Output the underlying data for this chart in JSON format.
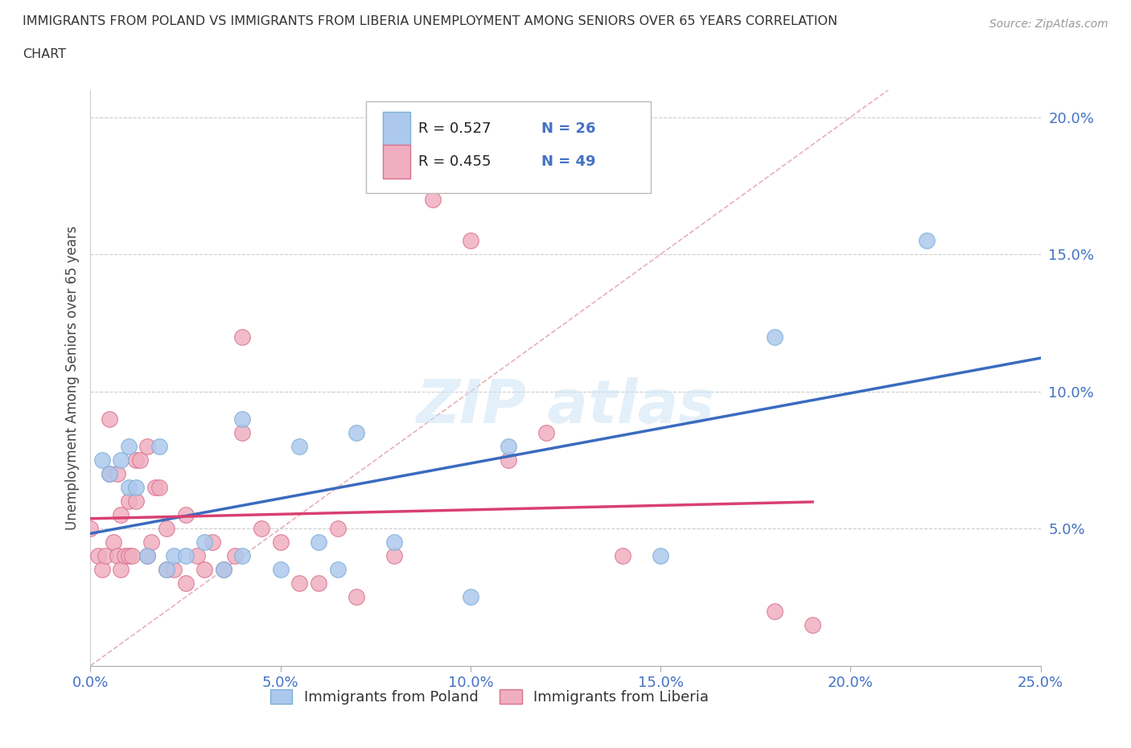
{
  "title_line1": "IMMIGRANTS FROM POLAND VS IMMIGRANTS FROM LIBERIA UNEMPLOYMENT AMONG SENIORS OVER 65 YEARS CORRELATION",
  "title_line2": "CHART",
  "source": "Source: ZipAtlas.com",
  "ylabel_label": "Unemployment Among Seniors over 65 years",
  "xlim": [
    0.0,
    0.25
  ],
  "ylim": [
    0.0,
    0.21
  ],
  "xticks": [
    0.0,
    0.05,
    0.1,
    0.15,
    0.2,
    0.25
  ],
  "yticks": [
    0.05,
    0.1,
    0.15,
    0.2
  ],
  "poland_color": "#adc8ed",
  "poland_edge_color": "#7aafd6",
  "liberia_color": "#f0afc0",
  "liberia_edge_color": "#d97090",
  "trend_poland_color": "#3a6bbf",
  "trend_liberia_color": "#d94070",
  "diagonal_color": "#e8b0b8",
  "R_poland": 0.527,
  "N_poland": 26,
  "R_liberia": 0.455,
  "N_liberia": 49,
  "poland_x": [
    0.003,
    0.005,
    0.008,
    0.01,
    0.01,
    0.012,
    0.015,
    0.018,
    0.02,
    0.022,
    0.025,
    0.03,
    0.035,
    0.04,
    0.04,
    0.05,
    0.055,
    0.06,
    0.065,
    0.07,
    0.08,
    0.1,
    0.11,
    0.15,
    0.18,
    0.22
  ],
  "poland_y": [
    0.075,
    0.07,
    0.075,
    0.065,
    0.08,
    0.065,
    0.04,
    0.08,
    0.035,
    0.04,
    0.04,
    0.045,
    0.035,
    0.04,
    0.09,
    0.035,
    0.08,
    0.045,
    0.035,
    0.085,
    0.045,
    0.025,
    0.08,
    0.04,
    0.12,
    0.155
  ],
  "liberia_x": [
    0.0,
    0.002,
    0.003,
    0.004,
    0.005,
    0.005,
    0.006,
    0.007,
    0.007,
    0.008,
    0.008,
    0.009,
    0.01,
    0.01,
    0.011,
    0.012,
    0.012,
    0.013,
    0.015,
    0.015,
    0.016,
    0.017,
    0.018,
    0.02,
    0.02,
    0.022,
    0.025,
    0.025,
    0.028,
    0.03,
    0.032,
    0.035,
    0.038,
    0.04,
    0.04,
    0.045,
    0.05,
    0.055,
    0.06,
    0.065,
    0.07,
    0.08,
    0.09,
    0.1,
    0.11,
    0.12,
    0.14,
    0.18,
    0.19
  ],
  "liberia_y": [
    0.05,
    0.04,
    0.035,
    0.04,
    0.09,
    0.07,
    0.045,
    0.04,
    0.07,
    0.035,
    0.055,
    0.04,
    0.04,
    0.06,
    0.04,
    0.06,
    0.075,
    0.075,
    0.04,
    0.08,
    0.045,
    0.065,
    0.065,
    0.05,
    0.035,
    0.035,
    0.055,
    0.03,
    0.04,
    0.035,
    0.045,
    0.035,
    0.04,
    0.085,
    0.12,
    0.05,
    0.045,
    0.03,
    0.03,
    0.05,
    0.025,
    0.04,
    0.17,
    0.155,
    0.075,
    0.085,
    0.04,
    0.02,
    0.015
  ]
}
